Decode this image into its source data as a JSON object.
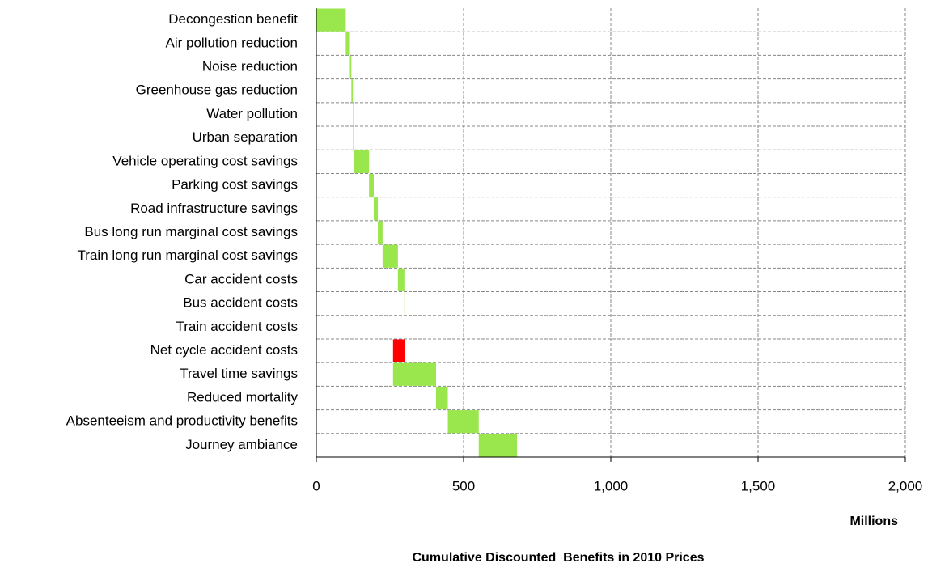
{
  "chart_data": {
    "type": "waterfall",
    "title": "Cumulative Discounted  Benefits in 2010 Prices",
    "x_label": "Millions",
    "orientation": "horizontal",
    "categories": [
      "Decongestion benefit",
      "Air pollution reduction",
      "Noise reduction",
      "Greenhouse gas reduction",
      "Water pollution",
      "Urban separation",
      "Vehicle operating cost savings",
      "Parking cost savings",
      "Road infrastructure savings",
      "Bus long run marginal cost savings",
      "Train long run marginal cost savings",
      "Car accident costs",
      "Bus accident costs",
      "Train accident costs",
      "Net cycle accident costs",
      "Travel time savings",
      "Reduced mortality",
      "Absenteeism and productivity benefits",
      "Journey ambiance"
    ],
    "values": [
      100,
      14,
      5,
      5,
      1,
      2,
      52,
      16,
      14,
      16,
      52,
      22,
      1,
      0.5,
      -40,
      146,
      40,
      105,
      130
    ],
    "colors": [
      "#99e64d",
      "#99e64d",
      "#99e64d",
      "#99e64d",
      "#99e64d",
      "#99e64d",
      "#99e64d",
      "#99e64d",
      "#99e64d",
      "#99e64d",
      "#99e64d",
      "#99e64d",
      "#99e64d",
      "#99e64d",
      "#ff0000",
      "#99e64d",
      "#99e64d",
      "#99e64d",
      "#99e64d"
    ],
    "xlim": [
      0,
      2000
    ],
    "xticks": [
      0,
      500,
      {
        "value": 1000,
        "label": "1,000"
      },
      {
        "value": 1500,
        "label": "1,500"
      },
      {
        "value": 2000,
        "label": "2,000"
      }
    ],
    "grid": true
  }
}
